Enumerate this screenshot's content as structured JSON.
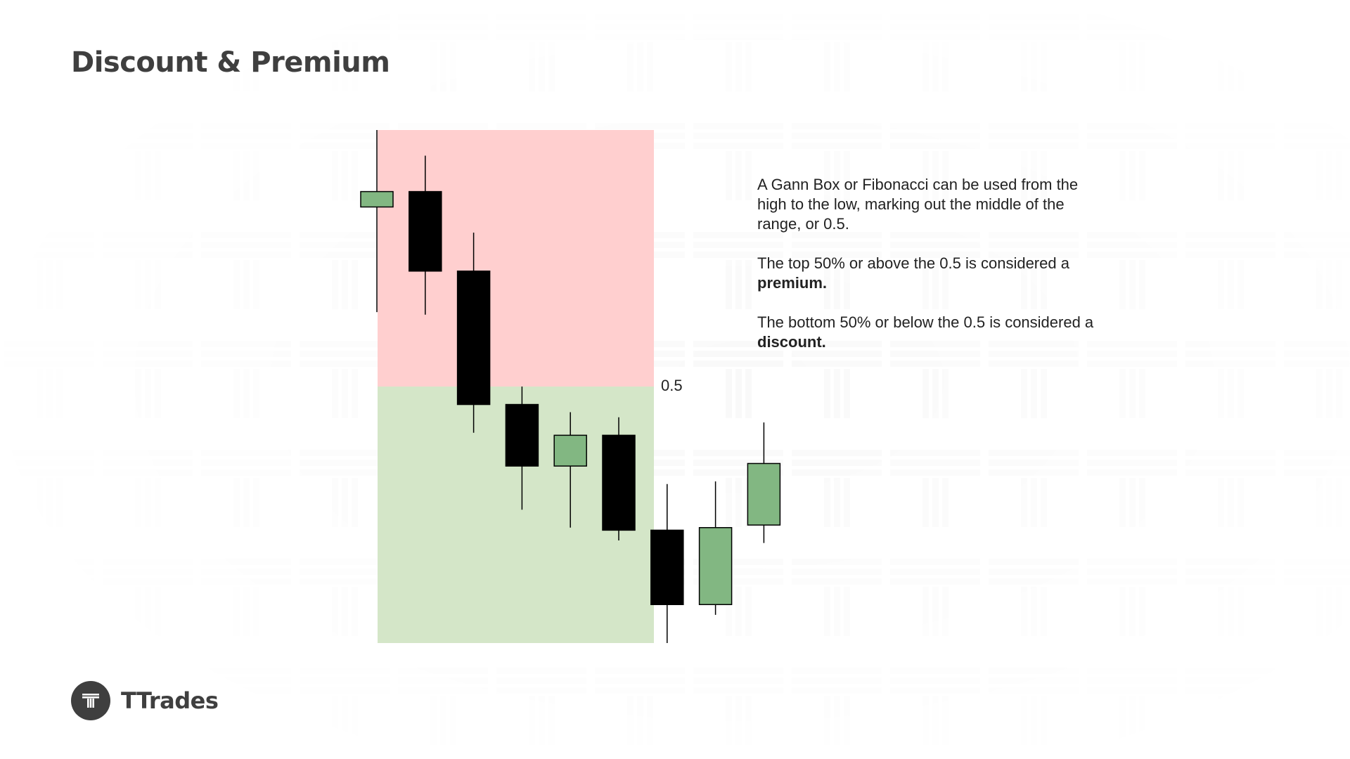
{
  "page": {
    "title": "Discount & Premium"
  },
  "description": {
    "p1": "A Gann Box or Fibonacci can be used from the high to the low, marking out the middle of the range, or 0.5.",
    "p2_prefix": "The top 50% or above the 0.5 is considered a ",
    "p2_bold": "premium.",
    "p3_prefix": "The bottom 50% or below the 0.5 is considered a ",
    "p3_bold": "discount."
  },
  "brand": {
    "name": "TTrades"
  },
  "colors": {
    "premium_zone": "#ffcfcf",
    "discount_zone": "#d4e6c8",
    "bull_candle": "#82b782",
    "bear_candle": "#000000",
    "text": "#3f3f3f"
  },
  "chart_data": {
    "type": "candlestick",
    "title": "",
    "range": {
      "high": 100,
      "low": 0,
      "mid": 50,
      "mid_label": "0.5"
    },
    "zones": [
      {
        "name": "premium",
        "from": 50,
        "to": 100
      },
      {
        "name": "discount",
        "from": 0,
        "to": 50
      }
    ],
    "candles": [
      {
        "open": 85,
        "high": 100,
        "low": 64.5,
        "close": 88
      },
      {
        "open": 88,
        "high": 95,
        "low": 64,
        "close": 72.5
      },
      {
        "open": 72.5,
        "high": 80,
        "low": 41,
        "close": 46.5
      },
      {
        "open": 46.5,
        "high": 50,
        "low": 26,
        "close": 34.5
      },
      {
        "open": 34.5,
        "high": 45,
        "low": 22.5,
        "close": 40.5
      },
      {
        "open": 40.5,
        "high": 44,
        "low": 20,
        "close": 22
      },
      {
        "open": 22,
        "high": 31,
        "low": 0,
        "close": 7.5
      },
      {
        "open": 7.5,
        "high": 31.5,
        "low": 5.5,
        "close": 22.5
      },
      {
        "open": 23,
        "high": 43,
        "low": 19.5,
        "close": 35
      }
    ],
    "ylim": [
      0,
      100
    ],
    "grid": false,
    "legend": "none"
  }
}
